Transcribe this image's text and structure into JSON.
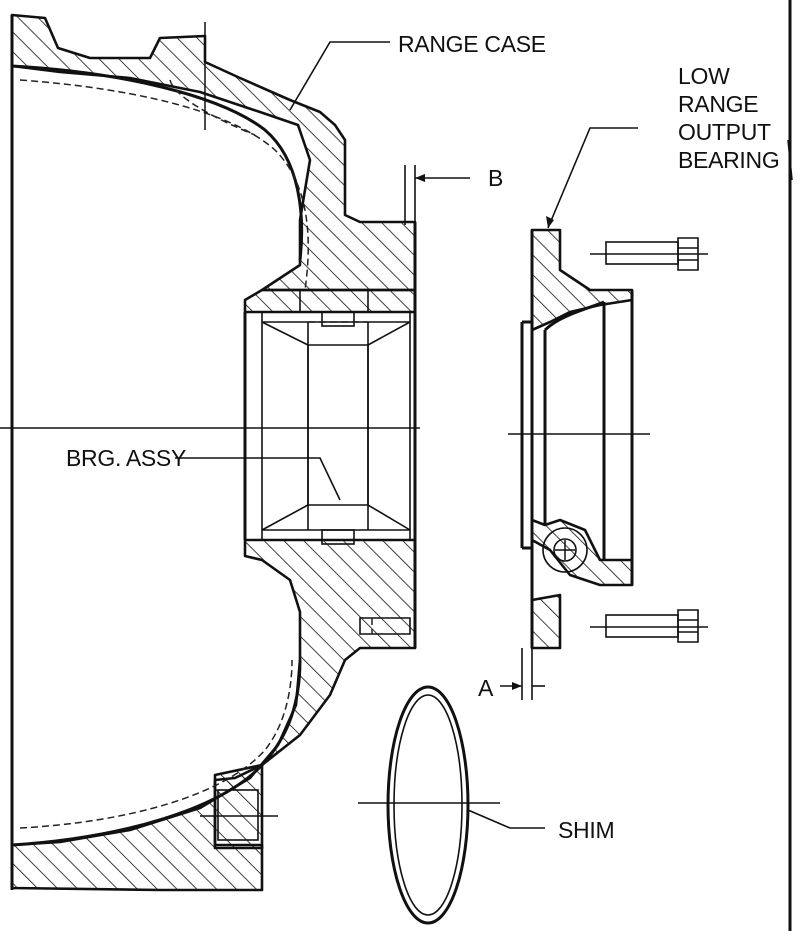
{
  "labels": {
    "range_case": "RANGE CASE",
    "low_range_bearing": [
      "LOW",
      "RANGE",
      "OUTPUT",
      "BEARING"
    ],
    "dimension_b": "B",
    "bearing_assembly": "BRG. ASSY",
    "dimension_a": "A",
    "shim": "SHIM"
  }
}
